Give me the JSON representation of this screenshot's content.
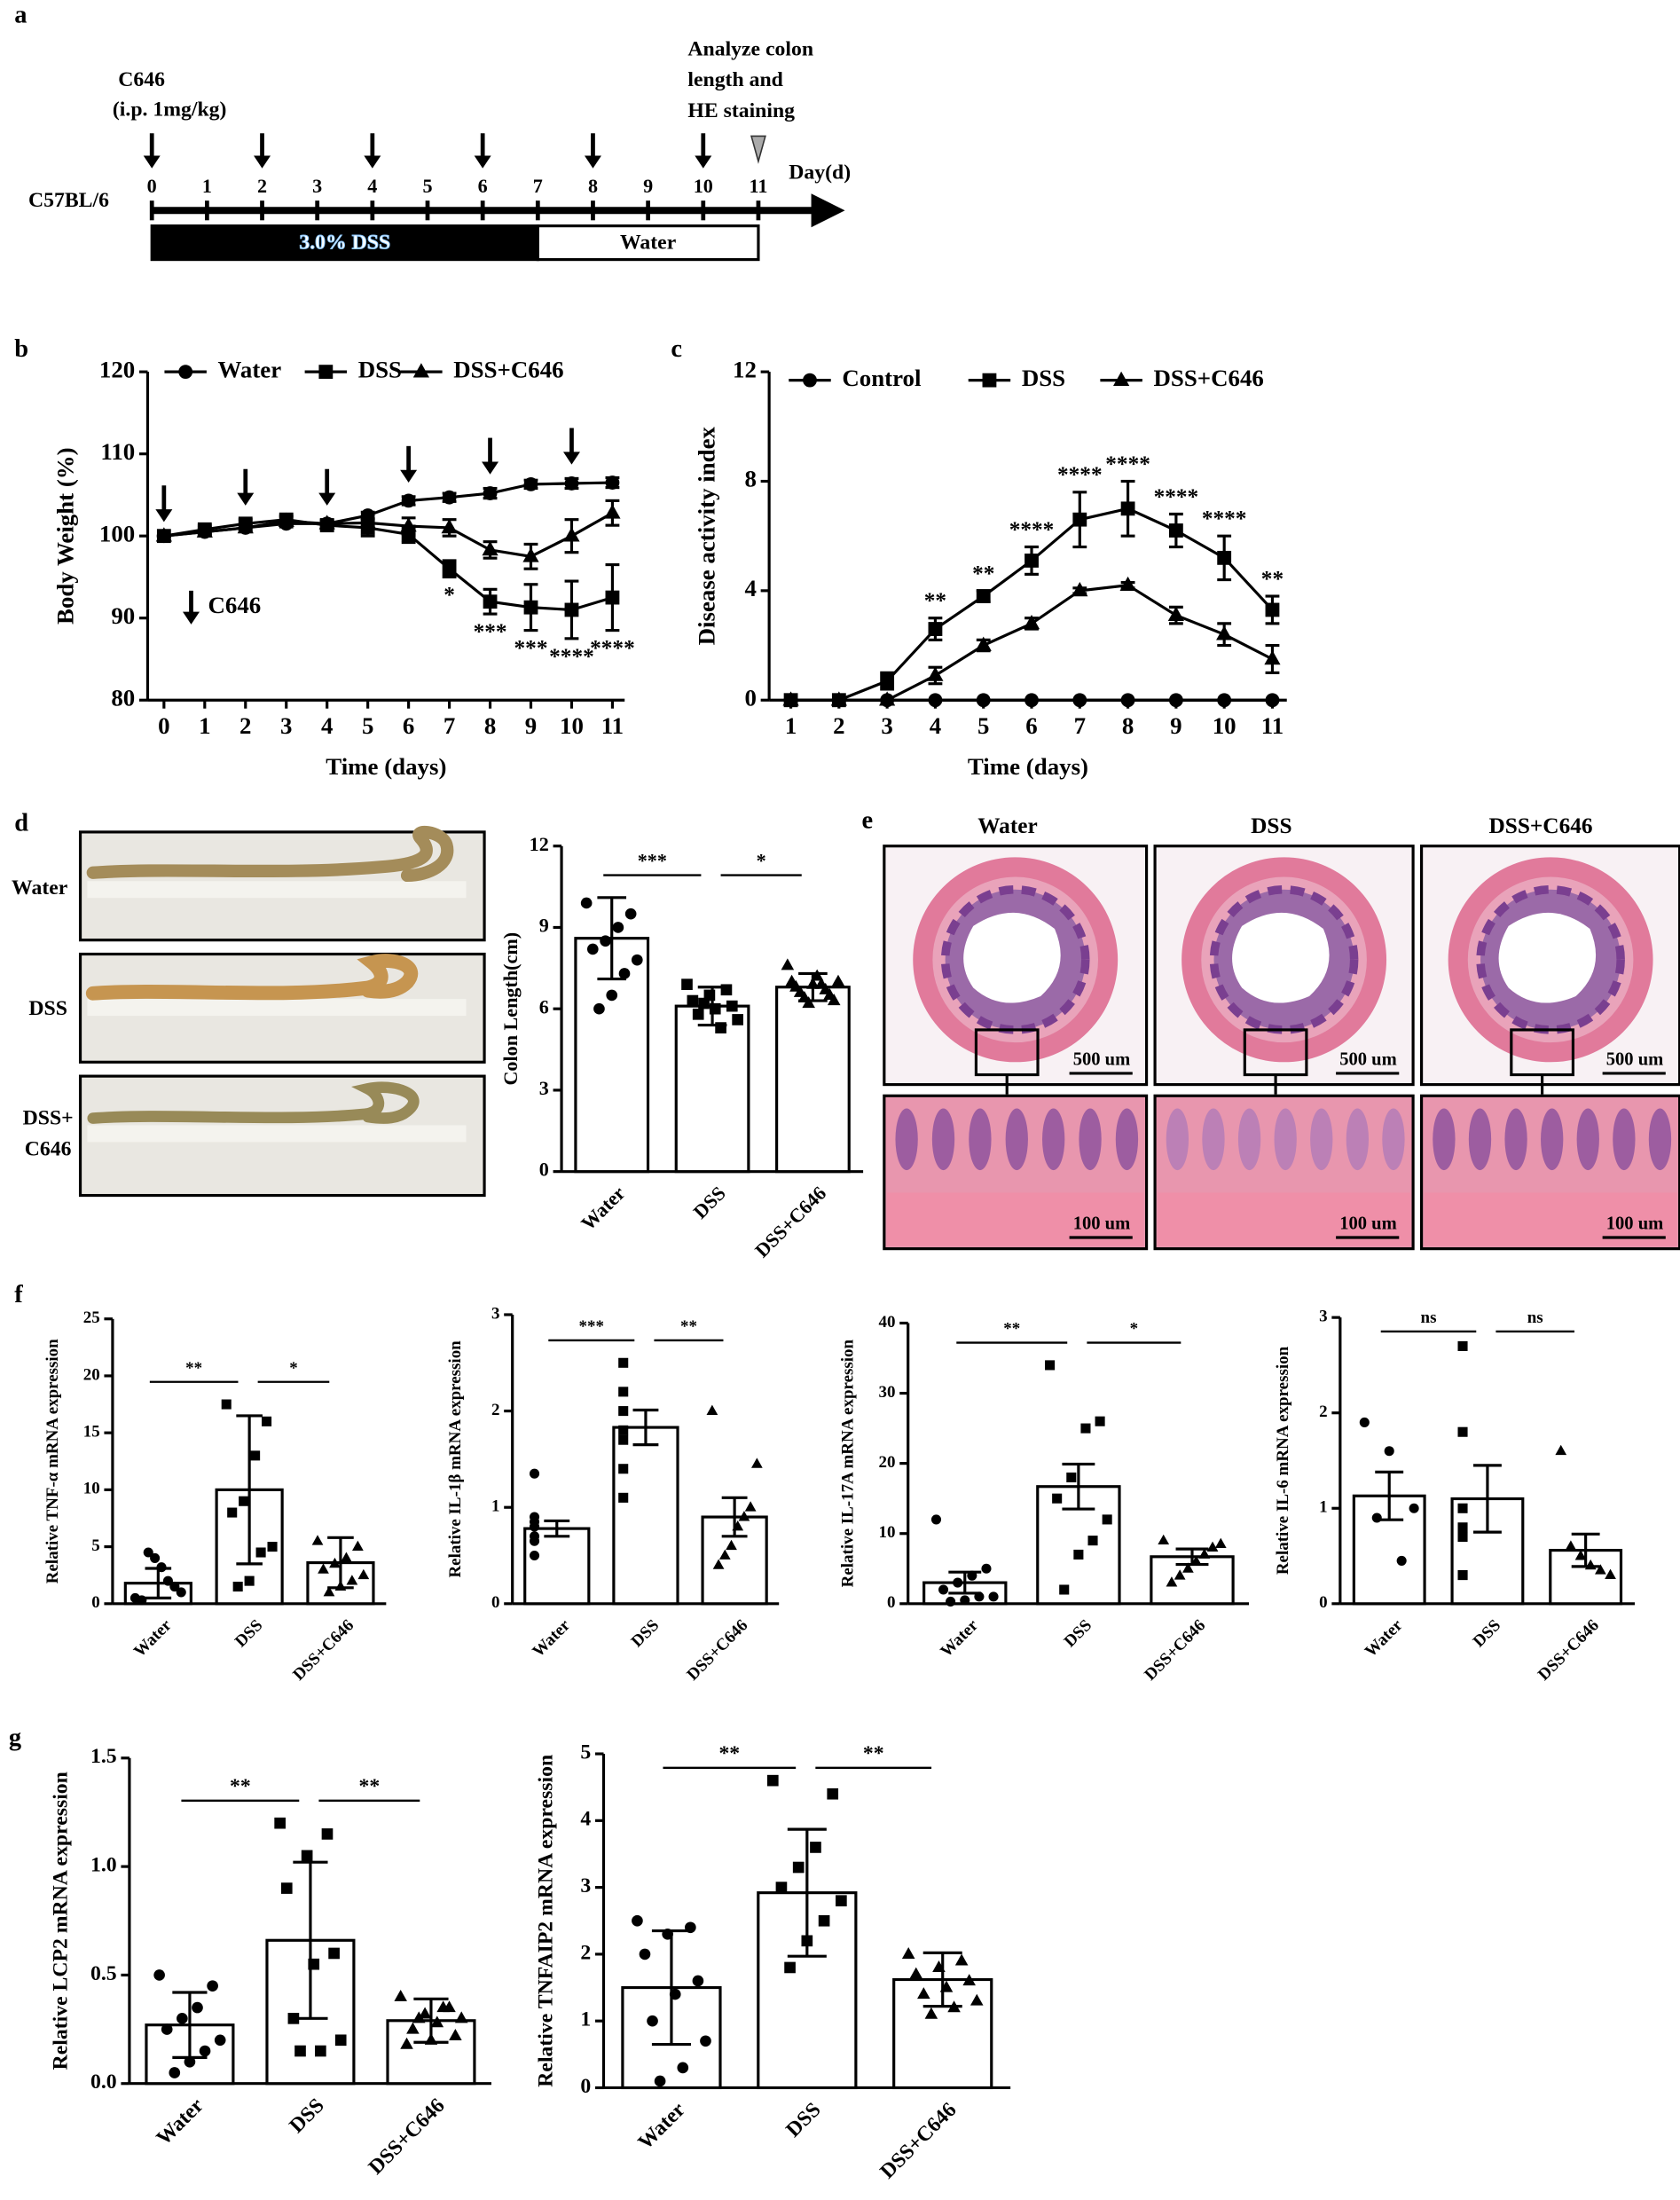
{
  "panel_labels": [
    "a",
    "b",
    "c",
    "d",
    "e",
    "f",
    "g"
  ],
  "timeline": {
    "strain": "C57BL/6",
    "treatment": [
      "C646",
      "(i.p. 1mg/kg)"
    ],
    "analysis": [
      "Analyze colon",
      "length and",
      "HE staining"
    ],
    "unit": "Day(d)",
    "days": [
      0,
      1,
      2,
      3,
      4,
      5,
      6,
      7,
      8,
      9,
      10,
      11
    ],
    "injection_days": [
      0,
      2,
      4,
      6,
      8,
      10
    ],
    "analysis_day": 11,
    "periods": [
      {
        "label": "3.0% DSS",
        "start": 0,
        "end": 7
      },
      {
        "label": "Water",
        "start": 7,
        "end": 11
      }
    ]
  },
  "colon_photos": {
    "rows": [
      [
        "Water"
      ],
      [
        "DSS"
      ],
      [
        "DSS+",
        "C646"
      ]
    ]
  },
  "histology": {
    "columns": [
      "Water",
      "DSS",
      "DSS+C646"
    ],
    "scale_top": "500 um",
    "scale_bottom": "100 um"
  },
  "chart_data": [
    {
      "type": "line",
      "ylabel": "Body Weight (%)",
      "xlabel": "Time (days)",
      "x": [
        0,
        1,
        2,
        3,
        4,
        5,
        6,
        7,
        8,
        9,
        10,
        11
      ],
      "xlim": [
        -0.4,
        11.3
      ],
      "xticks": [
        0,
        1,
        2,
        3,
        4,
        5,
        6,
        7,
        8,
        9,
        10,
        11
      ],
      "ylim": [
        80,
        120
      ],
      "yticks": [
        80,
        90,
        100,
        110,
        120
      ],
      "series": [
        {
          "name": "Water",
          "marker": "circle",
          "color": "#000000",
          "values": [
            100,
            100.5,
            101,
            101.5,
            101.5,
            102.5,
            104.3,
            104.7,
            105.2,
            106.3,
            106.4,
            106.5
          ],
          "errors": [
            0,
            0.3,
            0.4,
            0.4,
            0.4,
            0.4,
            0.5,
            0.5,
            0.6,
            0.5,
            0.6,
            0.6
          ]
        },
        {
          "name": "DSS",
          "marker": "square",
          "color": "#000000",
          "values": [
            100,
            100.8,
            101.5,
            102,
            101.3,
            101,
            100.2,
            96,
            92,
            91.3,
            91,
            92.5
          ],
          "errors": [
            0,
            0.5,
            0.5,
            0.5,
            0.5,
            1,
            1,
            1,
            1.5,
            2.8,
            3.5,
            4
          ]
        },
        {
          "name": "DSS+C646",
          "marker": "triangle",
          "color": "#000000",
          "values": [
            100,
            100.5,
            101,
            101.8,
            101.5,
            101.6,
            101.2,
            101,
            98.3,
            97.5,
            100,
            102.8
          ],
          "errors": [
            0,
            0.5,
            0.5,
            0.5,
            0.5,
            0.5,
            1,
            1,
            1,
            1.5,
            2,
            1.5
          ]
        }
      ],
      "annotations": [
        {
          "text": "*",
          "x": 7
        },
        {
          "text": "***",
          "x": 8
        },
        {
          "text": "***",
          "x": 9
        },
        {
          "text": "****",
          "x": 10
        },
        {
          "text": "****",
          "x": 11
        }
      ],
      "annotation_side": "below",
      "injection_arrows": {
        "label": "C646",
        "x": [
          0,
          2,
          4,
          6,
          8,
          10
        ]
      }
    },
    {
      "type": "line",
      "ylabel": "Disease activity  index",
      "xlabel": "Time (days)",
      "x": [
        1,
        2,
        3,
        4,
        5,
        6,
        7,
        8,
        9,
        10,
        11
      ],
      "xlim": [
        0.55,
        11.3
      ],
      "xticks": [
        1,
        2,
        3,
        4,
        5,
        6,
        7,
        8,
        9,
        10,
        11
      ],
      "ylim": [
        0,
        12
      ],
      "yticks": [
        0,
        4,
        8,
        12
      ],
      "series": [
        {
          "name": "Control",
          "marker": "circle",
          "color": "#000000",
          "values": [
            0,
            0,
            0,
            0,
            0,
            0,
            0,
            0,
            0,
            0,
            0
          ],
          "errors": [
            0,
            0,
            0,
            0,
            0,
            0,
            0,
            0,
            0,
            0,
            0
          ]
        },
        {
          "name": "DSS",
          "marker": "square",
          "color": "#000000",
          "values": [
            0,
            0,
            0.7,
            2.6,
            3.8,
            5.1,
            6.6,
            7,
            6.2,
            5.2,
            3.3
          ],
          "errors": [
            0,
            0,
            0.3,
            0.4,
            0.2,
            0.5,
            1,
            1,
            0.6,
            0.8,
            0.5
          ]
        },
        {
          "name": "DSS+C646",
          "marker": "triangle",
          "color": "#000000",
          "values": [
            0,
            0,
            0,
            0.9,
            2,
            2.8,
            4,
            4.2,
            3.1,
            2.4,
            1.5
          ],
          "errors": [
            0,
            0,
            0,
            0.3,
            0.2,
            0.2,
            0.1,
            0.1,
            0.3,
            0.4,
            0.5
          ]
        }
      ],
      "annotations": [
        {
          "text": "**",
          "x": 4
        },
        {
          "text": "**",
          "x": 5
        },
        {
          "text": "****",
          "x": 6
        },
        {
          "text": "****",
          "x": 7
        },
        {
          "text": "****",
          "x": 8
        },
        {
          "text": "****",
          "x": 9
        },
        {
          "text": "****",
          "x": 10
        },
        {
          "text": "**",
          "x": 11
        }
      ],
      "annotation_side": "above"
    },
    {
      "type": "bar",
      "ylabel": "Colon Length(cm)",
      "categories": [
        "Water",
        "DSS",
        "DSS+C646"
      ],
      "values": [
        8.6,
        6.1,
        6.8
      ],
      "errors": [
        1.5,
        0.7,
        0.5
      ],
      "points": [
        [
          9.9,
          9.5,
          9.0,
          8.5,
          8.2,
          7.8,
          7.3,
          6.5,
          6.0
        ],
        [
          6.9,
          6.7,
          6.5,
          6.3,
          6.1,
          6.0,
          5.8,
          5.6,
          5.3,
          6.2
        ],
        [
          7.6,
          7.2,
          7.0,
          6.9,
          6.8,
          6.7,
          6.6,
          6.5,
          6.4,
          6.3,
          6.2,
          7.0,
          6.9
        ]
      ],
      "markers": [
        "circle",
        "square",
        "triangle"
      ],
      "color": "#ffffff",
      "ylim": [
        0,
        12
      ],
      "yticks": [
        0,
        3,
        6,
        9,
        12
      ],
      "brackets": [
        {
          "text": "***",
          "between": [
            0,
            1
          ]
        },
        {
          "text": "*",
          "between": [
            1,
            2
          ]
        }
      ]
    },
    {
      "type": "bar",
      "ylabel": "Relative TNF-α mRNA expression",
      "categories": [
        "Water",
        "DSS",
        "DSS+C646"
      ],
      "values": [
        1.8,
        10,
        3.6
      ],
      "errors": [
        1.3,
        6.5,
        2.2
      ],
      "points": [
        [
          0.5,
          1,
          1.5,
          2,
          3.2,
          4,
          4.5,
          0.3
        ],
        [
          17.5,
          16,
          13,
          9,
          8,
          5,
          4.5,
          2,
          1.5
        ],
        [
          5.5,
          5,
          4,
          3.5,
          3,
          2.5,
          2,
          1.5,
          1
        ]
      ],
      "markers": [
        "circle",
        "square",
        "triangle"
      ],
      "color": "#ffffff",
      "ylim": [
        0,
        25
      ],
      "yticks": [
        0,
        5,
        10,
        15,
        20,
        25
      ],
      "brackets": [
        {
          "text": "**",
          "between": [
            0,
            1
          ]
        },
        {
          "text": "*",
          "between": [
            1,
            2
          ]
        }
      ]
    },
    {
      "type": "bar",
      "ylabel": "Relative  IL-1β mRNA expression",
      "categories": [
        "Water",
        "DSS",
        "DSS+C646"
      ],
      "values": [
        0.78,
        1.83,
        0.9
      ],
      "errors": [
        0.08,
        0.18,
        0.2
      ],
      "points": [
        [
          1.35,
          0.9,
          0.85,
          0.8,
          0.7,
          0.65,
          0.5
        ],
        [
          2.5,
          2.2,
          2.0,
          1.8,
          1.7,
          1.4,
          1.1
        ],
        [
          2.0,
          1.45,
          1.0,
          0.9,
          0.8,
          0.6,
          0.5,
          0.4
        ]
      ],
      "markers": [
        "circle",
        "square",
        "triangle"
      ],
      "color": "#ffffff",
      "ylim": [
        0,
        3
      ],
      "yticks": [
        0,
        1,
        2,
        3
      ],
      "brackets": [
        {
          "text": "***",
          "between": [
            0,
            1
          ]
        },
        {
          "text": "**",
          "between": [
            1,
            2
          ]
        }
      ]
    },
    {
      "type": "bar",
      "ylabel": "Relative  IL-17A mRNA expression",
      "categories": [
        "Water",
        "DSS",
        "DSS+C646"
      ],
      "values": [
        3,
        16.7,
        6.7
      ],
      "errors": [
        1.5,
        3.2,
        1.1
      ],
      "points": [
        [
          12,
          5,
          4,
          3,
          2,
          1,
          1,
          0.5,
          0.3
        ],
        [
          34,
          26,
          25,
          18,
          15,
          12,
          9,
          7,
          2
        ],
        [
          9,
          8.5,
          8,
          7,
          6,
          5,
          4,
          3
        ]
      ],
      "markers": [
        "circle",
        "square",
        "triangle"
      ],
      "color": "#ffffff",
      "ylim": [
        0,
        40
      ],
      "yticks": [
        0,
        10,
        20,
        30,
        40
      ],
      "brackets": [
        {
          "text": "**",
          "between": [
            0,
            1
          ]
        },
        {
          "text": "*",
          "between": [
            1,
            2
          ]
        }
      ]
    },
    {
      "type": "bar",
      "ylabel": "Relative  IL-6 mRNA expression",
      "categories": [
        "Water",
        "DSS",
        "DSS+C646"
      ],
      "values": [
        1.13,
        1.1,
        0.56
      ],
      "errors": [
        0.25,
        0.35,
        0.17
      ],
      "points": [
        [
          1.9,
          1.6,
          1.0,
          0.9,
          0.45
        ],
        [
          2.7,
          1.8,
          1.0,
          0.8,
          0.7,
          0.3,
          0.3
        ],
        [
          1.6,
          0.6,
          0.5,
          0.4,
          0.35,
          0.3
        ]
      ],
      "markers": [
        "circle",
        "square",
        "triangle"
      ],
      "color": "#ffffff",
      "ylim": [
        0,
        3
      ],
      "yticks": [
        0,
        1,
        2,
        3
      ],
      "brackets": [
        {
          "text": "ns",
          "between": [
            0,
            1
          ]
        },
        {
          "text": "ns",
          "between": [
            1,
            2
          ]
        }
      ]
    },
    {
      "type": "bar",
      "ylabel": "Relative  LCP2 mRNA expression",
      "categories": [
        "Water",
        "DSS",
        "DSS+C646"
      ],
      "values": [
        0.27,
        0.66,
        0.29
      ],
      "errors": [
        0.15,
        0.36,
        0.1
      ],
      "points": [
        [
          0.5,
          0.45,
          0.35,
          0.3,
          0.25,
          0.2,
          0.15,
          0.1,
          0.05
        ],
        [
          1.2,
          1.15,
          1.05,
          0.9,
          0.6,
          0.55,
          0.3,
          0.2,
          0.15,
          0.15
        ],
        [
          0.4,
          0.35,
          0.3,
          0.3,
          0.28,
          0.25,
          0.22,
          0.2,
          0.18,
          0.35,
          0.32
        ]
      ],
      "markers": [
        "circle",
        "square",
        "triangle"
      ],
      "color": "#ffffff",
      "ylim": [
        0,
        1.5
      ],
      "yticks": [
        {
          "value": 0,
          "label": "0.0"
        },
        0.5,
        {
          "value": 1,
          "label": "1.0"
        },
        1.5
      ],
      "brackets": [
        {
          "text": "**",
          "between": [
            0,
            1
          ]
        },
        {
          "text": "**",
          "between": [
            1,
            2
          ]
        }
      ]
    },
    {
      "type": "bar",
      "ylabel": "Relative  TNFAIP2 mRNA expression",
      "categories": [
        "Water",
        "DSS",
        "DSS+C646"
      ],
      "values": [
        1.5,
        2.92,
        1.62
      ],
      "errors": [
        0.85,
        0.95,
        0.4
      ],
      "points": [
        [
          2.5,
          2.4,
          2.3,
          2.0,
          1.6,
          1.4,
          1.0,
          0.7,
          0.3,
          0.1
        ],
        [
          4.6,
          4.4,
          3.6,
          3.3,
          3.0,
          2.8,
          2.5,
          2.2,
          1.8
        ],
        [
          2.0,
          1.9,
          1.8,
          1.7,
          1.6,
          1.5,
          1.4,
          1.3,
          1.2,
          1.1
        ]
      ],
      "markers": [
        "circle",
        "square",
        "triangle"
      ],
      "color": "#ffffff",
      "ylim": [
        0,
        5
      ],
      "yticks": [
        0,
        1,
        2,
        3,
        4,
        5
      ],
      "brackets": [
        {
          "text": "**",
          "between": [
            0,
            1
          ]
        },
        {
          "text": "**",
          "between": [
            1,
            2
          ]
        }
      ]
    }
  ]
}
